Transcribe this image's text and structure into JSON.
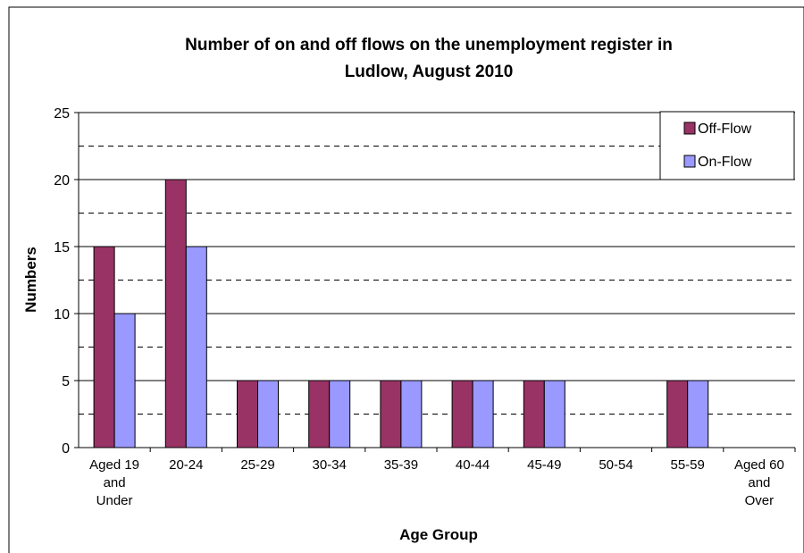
{
  "chart_data": {
    "type": "bar",
    "title": "Number of on and off flows on the unemployment register in Ludlow, August 2010",
    "title_lines": [
      "Number of on and off flows on the unemployment register in",
      "Ludlow, August 2010"
    ],
    "xlabel": "Age Group",
    "ylabel": "Numbers",
    "ylim": [
      0,
      25
    ],
    "yticks": [
      0,
      5,
      10,
      15,
      20,
      25
    ],
    "grid": "major solid, minor dashed",
    "legend_position": "top-right",
    "categories": [
      "Aged 19 and Under",
      "20-24",
      "25-29",
      "30-34",
      "35-39",
      "40-44",
      "45-49",
      "50-54",
      "55-59",
      "Aged 60 and Over"
    ],
    "category_label_lines": [
      [
        "Aged 19",
        "and",
        "Under"
      ],
      [
        "20-24"
      ],
      [
        "25-29"
      ],
      [
        "30-34"
      ],
      [
        "35-39"
      ],
      [
        "40-44"
      ],
      [
        "45-49"
      ],
      [
        "50-54"
      ],
      [
        "55-59"
      ],
      [
        "Aged 60",
        "and",
        "Over"
      ]
    ],
    "series": [
      {
        "name": "Off-Flow",
        "color": "#993366",
        "values": [
          15,
          20,
          5,
          5,
          5,
          5,
          5,
          0,
          5,
          0
        ]
      },
      {
        "name": "On-Flow",
        "color": "#9999FF",
        "values": [
          10,
          15,
          5,
          5,
          5,
          5,
          5,
          0,
          5,
          0
        ]
      }
    ]
  }
}
